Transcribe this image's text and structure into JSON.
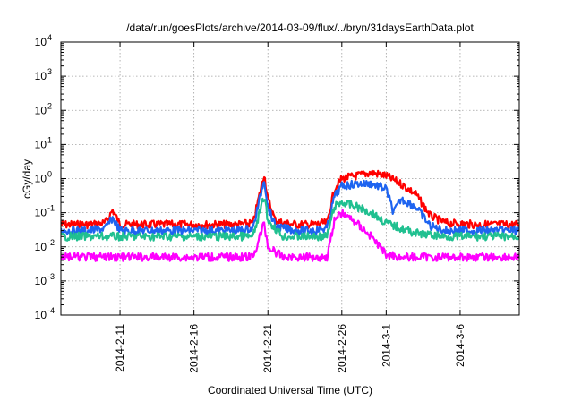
{
  "chart_data": {
    "type": "line",
    "title": "/data/run/goesPlots/archive/2014-03-09/flux/../bryn/31daysEarthData.plot",
    "xlabel": "Coordinated Universal Time (UTC)",
    "ylabel": "cGy/day",
    "yscale": "log",
    "ylim": [
      0.0001,
      10000
    ],
    "xlim": [
      "2014-02-07",
      "2014-03-10"
    ],
    "y_tick_labels": [
      {
        "base": "10",
        "exp": "-4"
      },
      {
        "base": "10",
        "exp": "-3"
      },
      {
        "base": "10",
        "exp": "-2"
      },
      {
        "base": "10",
        "exp": "-1"
      },
      {
        "base": "10",
        "exp": "0"
      },
      {
        "base": "10",
        "exp": "1"
      },
      {
        "base": "10",
        "exp": "2"
      },
      {
        "base": "10",
        "exp": "3"
      },
      {
        "base": "10",
        "exp": "4"
      }
    ],
    "x_ticks": [
      "2014-2-11",
      "2014-2-16",
      "2014-2-21",
      "2014-2-26",
      "2014-3-1",
      "2014-3-6"
    ],
    "x_tick_dates": [
      "2014-02-11",
      "2014-02-16",
      "2014-02-21",
      "2014-02-26",
      "2014-03-01",
      "2014-03-06"
    ],
    "grid": true,
    "series": [
      {
        "color": "#ff0000",
        "x": [
          "2014-02-07",
          "2014-02-09",
          "2014-02-10",
          "2014-02-10T12:00",
          "2014-02-11",
          "2014-02-13",
          "2014-02-15",
          "2014-02-17",
          "2014-02-19",
          "2014-02-20",
          "2014-02-20T18:00",
          "2014-02-21",
          "2014-02-21T12:00",
          "2014-02-22",
          "2014-02-23",
          "2014-02-24",
          "2014-02-25",
          "2014-02-25T12:00",
          "2014-02-26",
          "2014-02-27",
          "2014-02-28",
          "2014-03-01",
          "2014-03-02",
          "2014-03-03",
          "2014-03-04",
          "2014-03-05",
          "2014-03-07",
          "2014-03-10"
        ],
        "values": [
          0.045,
          0.045,
          0.05,
          0.12,
          0.045,
          0.045,
          0.045,
          0.045,
          0.045,
          0.05,
          1.4,
          0.25,
          0.06,
          0.05,
          0.045,
          0.045,
          0.05,
          0.5,
          1.0,
          1.2,
          1.5,
          1.2,
          0.7,
          0.35,
          0.08,
          0.05,
          0.045,
          0.045
        ]
      },
      {
        "color": "#1e64f0",
        "x": [
          "2014-02-07",
          "2014-02-09",
          "2014-02-10",
          "2014-02-10T12:00",
          "2014-02-11",
          "2014-02-13",
          "2014-02-15",
          "2014-02-17",
          "2014-02-19",
          "2014-02-20",
          "2014-02-20T18:00",
          "2014-02-21",
          "2014-02-21T12:00",
          "2014-02-22",
          "2014-02-23",
          "2014-02-24",
          "2014-02-25",
          "2014-02-25T12:00",
          "2014-02-26",
          "2014-02-27",
          "2014-02-28",
          "2014-03-01",
          "2014-03-01T12:00",
          "2014-03-02",
          "2014-03-03",
          "2014-03-04",
          "2014-03-05",
          "2014-03-07",
          "2014-03-10"
        ],
        "values": [
          0.03,
          0.03,
          0.035,
          0.07,
          0.03,
          0.03,
          0.03,
          0.03,
          0.03,
          0.035,
          1.0,
          0.15,
          0.04,
          0.035,
          0.03,
          0.03,
          0.035,
          0.3,
          0.6,
          0.7,
          0.7,
          0.5,
          0.1,
          0.25,
          0.15,
          0.04,
          0.03,
          0.03,
          0.03
        ]
      },
      {
        "color": "#20c090",
        "x": [
          "2014-02-07",
          "2014-02-10",
          "2014-02-13",
          "2014-02-17",
          "2014-02-20",
          "2014-02-20T18:00",
          "2014-02-21",
          "2014-02-22",
          "2014-02-25",
          "2014-02-25T12:00",
          "2014-02-26",
          "2014-02-27",
          "2014-02-28",
          "2014-03-01",
          "2014-03-02",
          "2014-03-03",
          "2014-03-05",
          "2014-03-10"
        ],
        "values": [
          0.02,
          0.02,
          0.02,
          0.02,
          0.02,
          0.3,
          0.06,
          0.02,
          0.02,
          0.15,
          0.2,
          0.15,
          0.1,
          0.05,
          0.035,
          0.025,
          0.02,
          0.02
        ]
      },
      {
        "color": "#ff00ff",
        "x": [
          "2014-02-07",
          "2014-02-10",
          "2014-02-13",
          "2014-02-17",
          "2014-02-20",
          "2014-02-20T18:00",
          "2014-02-21",
          "2014-02-22",
          "2014-02-25",
          "2014-02-25T12:00",
          "2014-02-26",
          "2014-02-27",
          "2014-02-28",
          "2014-03-01",
          "2014-03-02",
          "2014-03-05",
          "2014-03-10"
        ],
        "values": [
          0.005,
          0.005,
          0.005,
          0.005,
          0.005,
          0.05,
          0.01,
          0.005,
          0.005,
          0.06,
          0.1,
          0.05,
          0.02,
          0.006,
          0.005,
          0.005,
          0.005
        ]
      }
    ]
  }
}
